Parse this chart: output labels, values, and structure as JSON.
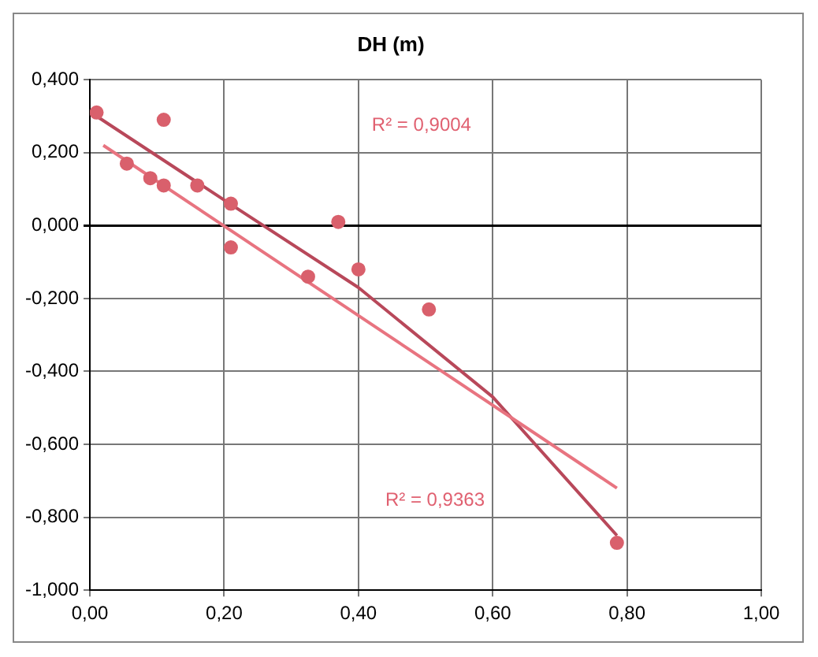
{
  "chart_data": {
    "type": "scatter",
    "title": "DH (m)",
    "xlim": [
      0,
      1
    ],
    "xticks": [
      {
        "value": 0,
        "label": "0,00"
      },
      {
        "value": 0.2,
        "label": "0,20"
      },
      {
        "value": 0.4,
        "label": "0,40"
      },
      {
        "value": 0.6,
        "label": "0,60"
      },
      {
        "value": 0.8,
        "label": "0,80"
      },
      {
        "value": 1,
        "label": "1,00"
      }
    ],
    "ylim": [
      -1,
      0.4
    ],
    "yticks": [
      {
        "value": -1,
        "label": "-1,000"
      },
      {
        "value": -0.8,
        "label": "-0,800"
      },
      {
        "value": -0.6,
        "label": "-0,600"
      },
      {
        "value": -0.4,
        "label": "-0,400"
      },
      {
        "value": -0.2,
        "label": "-0,200"
      },
      {
        "value": 0,
        "label": "0,000"
      },
      {
        "value": 0.2,
        "label": "0,200"
      },
      {
        "value": 0.4,
        "label": "0,400"
      }
    ],
    "grid": true,
    "marker": "circle",
    "series": [
      {
        "type": "scatter",
        "color": "#d9606c",
        "x": [
          0.01,
          0.11,
          0.055,
          0.09,
          0.11,
          0.16,
          0.21,
          0.21,
          0.37,
          0.325,
          0.4,
          0.505,
          0.785
        ],
        "values": [
          0.31,
          0.29,
          0.17,
          0.13,
          0.11,
          0.11,
          0.06,
          -0.06,
          0.01,
          -0.14,
          -0.12,
          -0.23,
          -0.87
        ]
      },
      {
        "type": "line",
        "marker": "none",
        "color": "#e87480",
        "x": [
          0.02,
          0.785
        ],
        "values": [
          0.22,
          -0.72
        ]
      },
      {
        "type": "line",
        "marker": "none",
        "color": "#b8485a",
        "x": [
          0.01,
          0.2,
          0.4,
          0.6,
          0.785
        ],
        "values": [
          0.3,
          0.07,
          -0.17,
          -0.47,
          -0.85
        ]
      }
    ],
    "annotations": [
      "R² = 0,9004",
      "R² = 0,9363"
    ]
  }
}
